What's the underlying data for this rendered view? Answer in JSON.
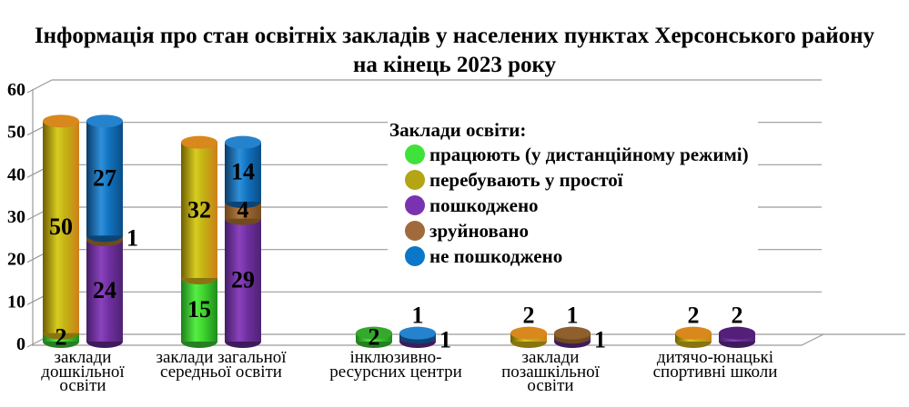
{
  "title": {
    "line1": "Інформація про стан освітніх закладів у населених пунктах Херсонського району",
    "line2": "на кінець 2023 року"
  },
  "legend": {
    "header": "Заклади освіти:"
  },
  "chart_data": {
    "type": "bar",
    "subtype": "3d-stacked-cylinder-pairs",
    "title": "Інформація про стан освітніх закладів у населених пунктах Херсонського району на кінець 2023 року",
    "ylim": [
      0,
      60
    ],
    "yticks": [
      0,
      10,
      20,
      30,
      40,
      50,
      60
    ],
    "grid": true,
    "legend_position": "overlay-center-right",
    "legend_header": "Заклади освіти:",
    "series": [
      {
        "name": "працюють (у дистанційному режимі)",
        "legend_color": "#3fe23a",
        "body": [
          "#1e7e1b",
          "#55ee44",
          "#3fd42e",
          "#1e8c1c"
        ],
        "top": "#35a82e",
        "cap": "#267f22"
      },
      {
        "name": "перебувають у простої",
        "legend_color": "#b5a414",
        "body": [
          "#6e5e02",
          "#d8cc20",
          "#c2b214",
          "#ce7f1a"
        ],
        "top": "#d8881c",
        "cap": "#8a7410"
      },
      {
        "name": "пошкоджено",
        "legend_color": "#7a33b0",
        "body": [
          "#451c66",
          "#8a42be",
          "#7030a0",
          "#4e2173"
        ],
        "top": "#531f78",
        "cap": "#3f1a5c"
      },
      {
        "name": "зруйновано",
        "legend_color": "#a16a3c",
        "body": [
          "#6e4418",
          "#b07a40",
          "#9c6430",
          "#774c1f"
        ],
        "top": "#8f5f2e",
        "cap": "#6e4a1e"
      },
      {
        "name": "не пошкоджено",
        "legend_color": "#0a77c8",
        "body": [
          "#0b3c69",
          "#2f8fd9",
          "#1173bf",
          "#0a4c86"
        ],
        "top": "#2583ce",
        "cap": "#0c4476"
      }
    ],
    "categories": [
      {
        "label_lines": [
          "заклади",
          "дошкільної",
          "освіти"
        ],
        "bars": [
          [
            {
              "series": 0,
              "value": 2,
              "label_pos": "in"
            },
            {
              "series": 1,
              "value": 50,
              "label_pos": "in"
            }
          ],
          [
            {
              "series": 2,
              "value": 24,
              "label_pos": "in"
            },
            {
              "series": 3,
              "value": 1,
              "label_pos": "right"
            },
            {
              "series": 4,
              "value": 27,
              "label_pos": "in"
            }
          ]
        ]
      },
      {
        "label_lines": [
          "заклади загальної",
          "середньої освіти"
        ],
        "bars": [
          [
            {
              "series": 0,
              "value": 15,
              "label_pos": "in"
            },
            {
              "series": 1,
              "value": 32,
              "label_pos": "in"
            }
          ],
          [
            {
              "series": 2,
              "value": 29,
              "label_pos": "in"
            },
            {
              "series": 3,
              "value": 4,
              "label_pos": "in"
            },
            {
              "series": 4,
              "value": 14,
              "label_pos": "in"
            }
          ]
        ]
      },
      {
        "label_lines": [
          "інклюзивно-",
          "ресурсних центри"
        ],
        "bars": [
          [
            {
              "series": 0,
              "value": 2,
              "label_pos": "in"
            }
          ],
          [
            {
              "series": 2,
              "value": 1,
              "label_pos": "right"
            },
            {
              "series": 4,
              "value": 1,
              "label_pos": "above"
            }
          ]
        ]
      },
      {
        "label_lines": [
          "заклади",
          "позашкільної",
          "освіти"
        ],
        "bars": [
          [
            {
              "series": 1,
              "value": 2,
              "label_pos": "above"
            }
          ],
          [
            {
              "series": 2,
              "value": 1,
              "label_pos": "right"
            },
            {
              "series": 3,
              "value": 1,
              "label_pos": "above"
            }
          ]
        ]
      },
      {
        "label_lines": [
          "дитячо-юнацькі",
          "спортивні школи"
        ],
        "bars": [
          [
            {
              "series": 1,
              "value": 2,
              "label_pos": "above"
            }
          ],
          [
            {
              "series": 2,
              "value": 2,
              "label_pos": "above"
            }
          ]
        ]
      }
    ]
  }
}
